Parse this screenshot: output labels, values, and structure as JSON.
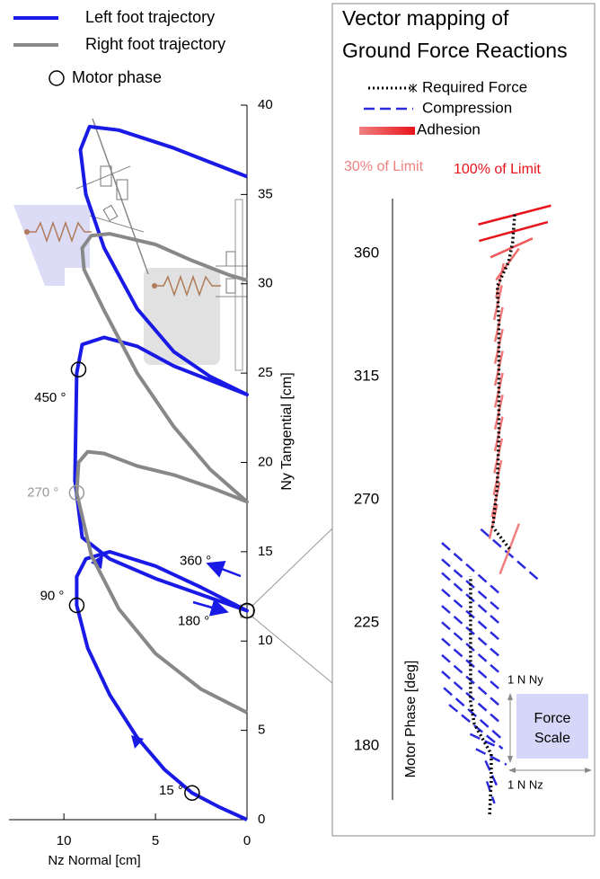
{
  "chart_data": [
    {
      "type": "line",
      "xlabel": "Nz Normal [cm]",
      "ylabel": "Ny Tangential [cm]",
      "xlim": [
        13,
        0
      ],
      "ylim": [
        0,
        40
      ],
      "xticks": [
        10,
        5,
        0
      ],
      "yticks": [
        0,
        5,
        10,
        15,
        20,
        25,
        30,
        35,
        40
      ],
      "series": [
        {
          "name": "Left foot trajectory",
          "color": "#1a1ae6",
          "x": [
            0,
            1.5,
            3,
            4.5,
            6,
            7.5,
            8.7,
            9.3,
            9.3,
            8.8,
            7.5,
            5,
            2.5,
            0,
            2.5,
            5,
            7.5,
            9,
            9.4,
            9.3,
            9,
            7.8,
            6,
            4,
            2,
            0,
            2,
            4,
            6,
            7.8,
            8.8,
            9.1,
            8.6,
            7,
            4,
            2,
            0
          ],
          "values": [
            0,
            0.7,
            1.5,
            2.8,
            4.6,
            7,
            9.6,
            12,
            13.6,
            14.6,
            15,
            14.2,
            13,
            11.7,
            12.6,
            13.5,
            14.6,
            15.8,
            19,
            25,
            26.6,
            27,
            26.5,
            25.4,
            24.6,
            23.8,
            24.8,
            26.2,
            28.6,
            32,
            35,
            37.5,
            38.8,
            38.6,
            37.6,
            36.8,
            36
          ]
        },
        {
          "name": "Right foot trajectory",
          "color": "#888888",
          "x": [
            0,
            2.5,
            5,
            7,
            8.5,
            9.3,
            9.2,
            8.7,
            7.8,
            6,
            4,
            2,
            0,
            2,
            4,
            6,
            7.8,
            8.9,
            9,
            8.5,
            7.5,
            5,
            3,
            1,
            0
          ],
          "values": [
            6,
            7.3,
            9.3,
            11.8,
            14.8,
            18.3,
            20,
            20.6,
            20.5,
            19.8,
            19.3,
            18.6,
            17.8,
            19.6,
            22,
            25,
            28.5,
            30.8,
            32,
            32.7,
            32.8,
            32.2,
            31.3,
            30.5,
            30.2
          ]
        }
      ],
      "marker_legend": "Motor phase",
      "phase_markers": [
        {
          "label": "15 °",
          "x": 3,
          "y": 1.5,
          "color": "#000000"
        },
        {
          "label": "90 °",
          "x": 9.3,
          "y": 12,
          "color": "#000000"
        },
        {
          "label": "180 °",
          "x": 0,
          "y": 11.7,
          "color": "#000000"
        },
        {
          "label": "270 °",
          "x": 9.3,
          "y": 18.3,
          "color": "#999999"
        },
        {
          "label": "360 °",
          "x": 0,
          "y": 11.7,
          "color": "#000000"
        },
        {
          "label": "450 °",
          "x": 9.2,
          "y": 25.2,
          "color": "#000000"
        }
      ]
    },
    {
      "type": "vector",
      "title": [
        "Vector mapping of",
        "Ground Force Reactions"
      ],
      "ylabel": "Motor Phase [deg]",
      "ylim": [
        155,
        380
      ],
      "yticks": [
        180,
        225,
        270,
        315,
        360
      ],
      "xlim": [
        -2,
        1.35
      ],
      "series": [
        {
          "name": "Required Force",
          "color": "#000000",
          "x": [
            155,
            167,
            177,
            183,
            188,
            196,
            210,
            223,
            236,
            242,
            null,
            252,
            260,
            275,
            295,
            315,
            334,
            348,
            357,
            364,
            375
          ],
          "values": [
            0,
            0.02,
            0.02,
            -0.1,
            -0.2,
            -0.25,
            -0.25,
            -0.25,
            -0.25,
            -0.25,
            null,
            0.26,
            0.04,
            0.1,
            0.12,
            0.12,
            0.12,
            0.1,
            0.25,
            0.3,
            0.33
          ]
        },
        {
          "name": "Compression",
          "color": "#2b2bdd",
          "x": [
            250,
            245,
            239,
            234,
            228,
            222,
            216,
            210,
            204,
            198,
            192,
            187,
            182,
            176,
            170,
            163
          ],
          "nz": [
            0.75,
            0.75,
            0.75,
            0.75,
            0.75,
            0.75,
            0.75,
            0.75,
            0.75,
            0.75,
            0.75,
            0.7,
            0.35,
            0.4,
            0.15,
            0.1
          ],
          "ny": [
            -0.8,
            -0.8,
            -0.8,
            -0.8,
            -0.8,
            -0.8,
            -0.8,
            -0.8,
            -0.8,
            -0.8,
            -0.8,
            -0.7,
            -0.2,
            -0.25,
            -0.4,
            -0.35
          ]
        },
        {
          "name": "Adhesion",
          "color": "#e8141c",
          "x": [
            252,
            262,
            270,
            278,
            286,
            294,
            302,
            310,
            318,
            326,
            334,
            342,
            350,
            356,
            362,
            368,
            374
          ],
          "nz": [
            0.25,
            0.1,
            0.1,
            0.1,
            0.1,
            0.1,
            0.1,
            0.1,
            0.1,
            0.1,
            0.1,
            0.1,
            0.1,
            0.3,
            0.55,
            0.9,
            0.95
          ],
          "ny": [
            0.8,
            0.55,
            0.55,
            0.55,
            0.55,
            0.55,
            0.55,
            0.55,
            0.55,
            0.55,
            0.55,
            0.55,
            0.55,
            0.5,
            0.3,
            0.3,
            0.3
          ],
          "percent_of_limit": [
            30,
            35,
            35,
            35,
            35,
            35,
            35,
            35,
            35,
            35,
            35,
            35,
            35,
            45,
            55,
            100,
            100
          ]
        }
      ],
      "limit_labels": [
        {
          "text": "30% of Limit",
          "value": 30,
          "color": "#f08080"
        },
        {
          "text": "100% of Limit",
          "value": 100,
          "color": "#e8141c"
        }
      ],
      "force_scale": {
        "title": [
          "Force",
          "Scale"
        ],
        "ny_label": "1 N Ny",
        "nz_label": "1 N Nz",
        "ny": 1,
        "nz": 1
      }
    }
  ]
}
